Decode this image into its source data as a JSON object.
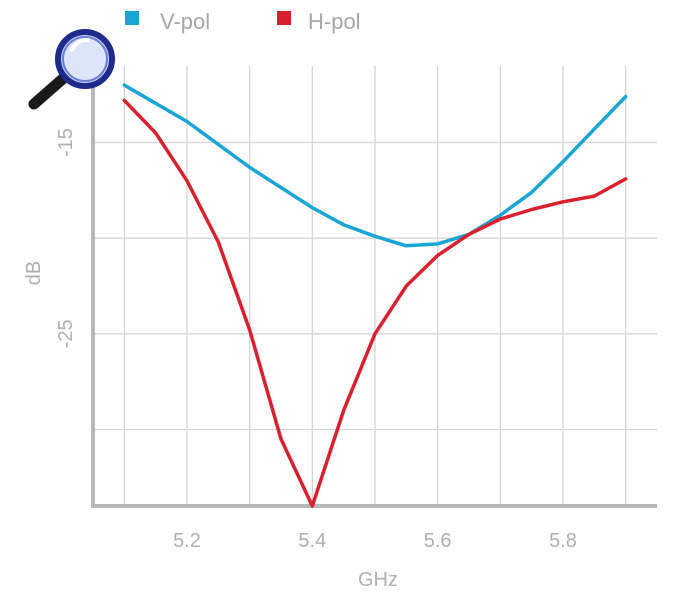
{
  "chart_data": {
    "type": "line",
    "title": "",
    "xlabel": "GHz",
    "ylabel": "dB",
    "xlim": [
      5.05,
      5.95
    ],
    "ylim": [
      -34,
      -11
    ],
    "x_ticks": [
      5.2,
      5.4,
      5.6,
      5.8
    ],
    "x_tick_labels": [
      "5.2",
      "5.4",
      "5.6",
      "5.8"
    ],
    "x_grid": [
      5.1,
      5.2,
      5.3,
      5.4,
      5.5,
      5.6,
      5.7,
      5.8,
      5.9
    ],
    "y_ticks": [
      -15,
      -25
    ],
    "y_tick_labels": [
      "-15",
      "-25"
    ],
    "y_grid": [
      -15,
      -20,
      -25,
      -30
    ],
    "grid": true,
    "legend_position": "top-left",
    "series": [
      {
        "name": "V-pol",
        "color": "#1aa6d4",
        "x": [
          5.1,
          5.2,
          5.3,
          5.4,
          5.45,
          5.5,
          5.55,
          5.6,
          5.65,
          5.7,
          5.75,
          5.8,
          5.85,
          5.9
        ],
        "y": [
          -12.0,
          -13.9,
          -16.3,
          -18.4,
          -19.3,
          -19.9,
          -20.4,
          -20.3,
          -19.8,
          -18.8,
          -17.6,
          -16.0,
          -14.3,
          -12.6
        ]
      },
      {
        "name": "H-pol",
        "color": "#d9202e",
        "x": [
          5.1,
          5.15,
          5.2,
          5.25,
          5.3,
          5.35,
          5.4,
          5.45,
          5.5,
          5.55,
          5.6,
          5.65,
          5.7,
          5.75,
          5.8,
          5.85,
          5.9
        ],
        "y": [
          -12.8,
          -14.5,
          -17.0,
          -20.2,
          -24.8,
          -30.5,
          -34.0,
          -29.0,
          -25.0,
          -22.5,
          -20.9,
          -19.8,
          -19.0,
          -18.5,
          -18.1,
          -17.8,
          -16.9
        ]
      }
    ]
  },
  "icons": {
    "magnifier": "magnifier-icon"
  }
}
